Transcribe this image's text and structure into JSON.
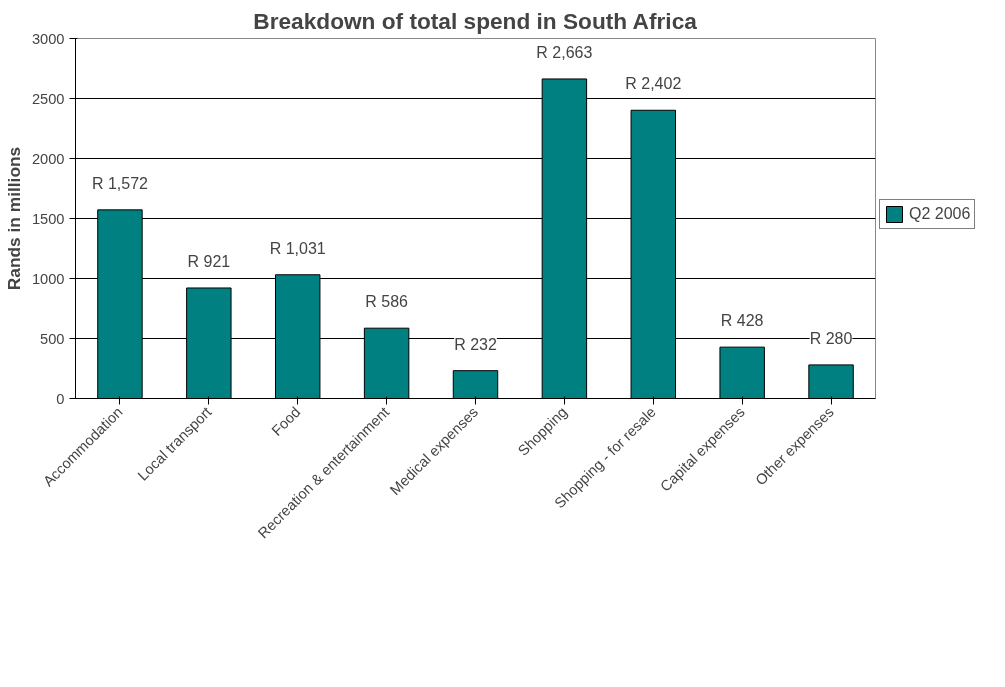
{
  "chart_data": {
    "type": "bar",
    "title": "Breakdown of total spend in South Africa",
    "ylabel": "Rands in millions",
    "categories": [
      "Accommodation",
      "Local transport",
      "Food",
      "Recreation & entertainment",
      "Medical expenses",
      "Shopping",
      "Shopping - for resale",
      "Capital expenses",
      "Other expenses"
    ],
    "series": [
      {
        "name": "Q2 2006",
        "color": "#008080",
        "values": [
          1572,
          921,
          1031,
          586,
          232,
          2663,
          2402,
          428,
          280
        ],
        "value_labels": [
          "R 1,572",
          "R 921",
          "R 1,031",
          "R 586",
          "R 232",
          "R 2,663",
          "R 2,402",
          "R 428",
          "R 280"
        ]
      }
    ],
    "ylim": [
      0,
      3000
    ],
    "yticks": [
      0,
      500,
      1000,
      1500,
      2000,
      2500,
      3000
    ],
    "grid": "y",
    "legend": "right"
  }
}
